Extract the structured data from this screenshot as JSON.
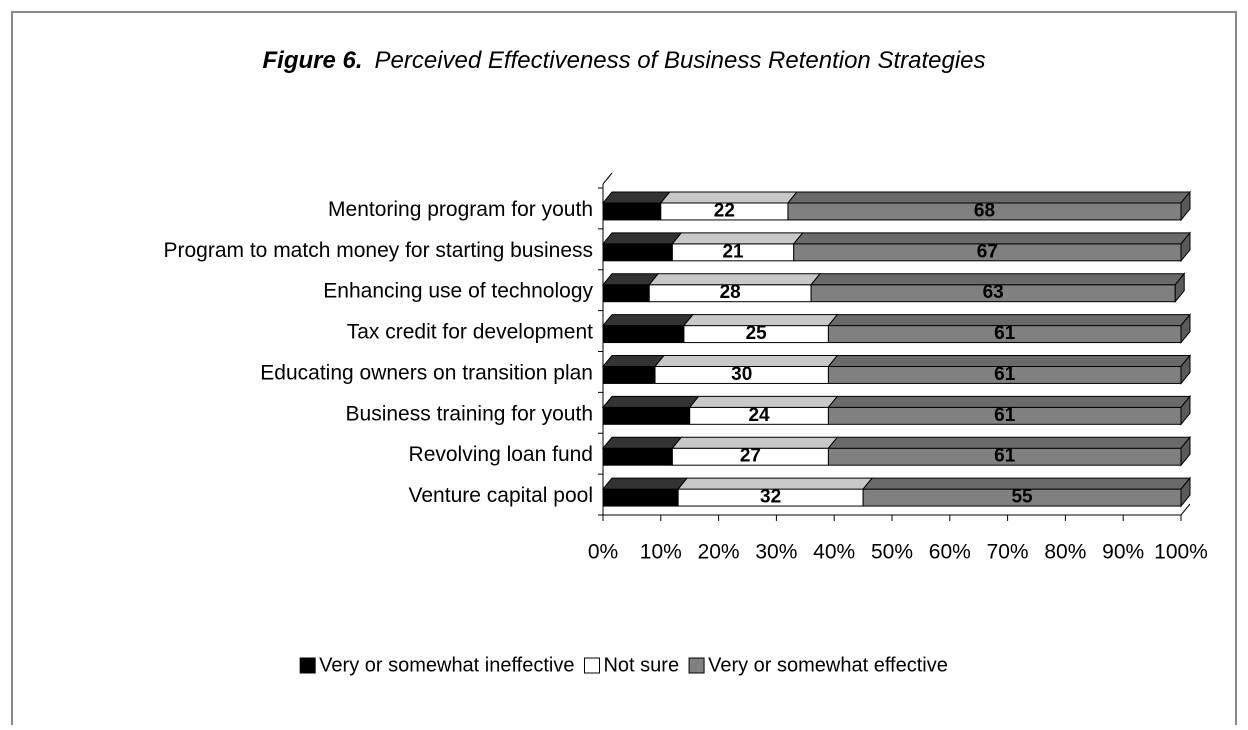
{
  "chart_data": {
    "type": "stacked_bar_horizontal",
    "figure_label": "Figure 6.",
    "title": "Perceived Effectiveness of Business Retention Strategies",
    "categories": [
      "Mentoring program for youth",
      "Program to match money for starting business",
      "Enhancing use of technology",
      "Tax credit for development",
      "Educating owners on transition plan",
      "Business training for youth",
      "Revolving loan fund",
      "Venture capital pool"
    ],
    "series": [
      {
        "name": "Very or somewhat ineffective",
        "color": "#000000",
        "values": [
          10,
          12,
          8,
          14,
          9,
          15,
          12,
          13
        ]
      },
      {
        "name": "Not sure",
        "color": "#ffffff",
        "values": [
          22,
          21,
          28,
          25,
          30,
          24,
          27,
          32
        ]
      },
      {
        "name": "Very or somewhat effective",
        "color": "#808080",
        "values": [
          68,
          67,
          63,
          61,
          61,
          61,
          61,
          55
        ]
      }
    ],
    "xlim": [
      0,
      100
    ],
    "xticks": [
      {
        "value": 0,
        "label": "0%"
      },
      {
        "value": 10,
        "label": "10%"
      },
      {
        "value": 20,
        "label": "20%"
      },
      {
        "value": 30,
        "label": "30%"
      },
      {
        "value": 40,
        "label": "40%"
      },
      {
        "value": 50,
        "label": "50%"
      },
      {
        "value": 60,
        "label": "60%"
      },
      {
        "value": 70,
        "label": "70%"
      },
      {
        "value": 80,
        "label": "80%"
      },
      {
        "value": 90,
        "label": "90%"
      },
      {
        "value": 100,
        "label": "100%"
      }
    ],
    "legend": "bottom"
  }
}
